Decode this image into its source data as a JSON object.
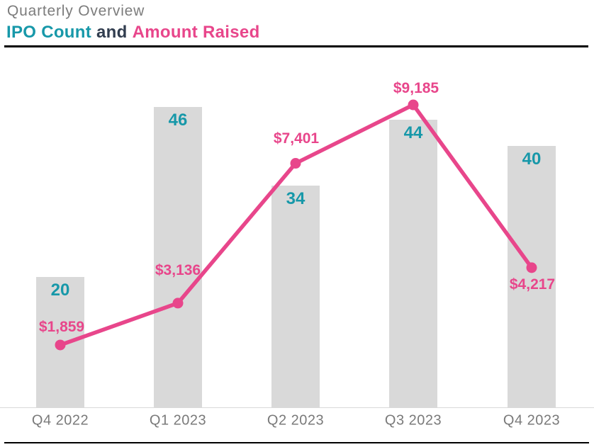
{
  "header": {
    "title": "Quarterly Overview",
    "subtitle": {
      "count_label": "IPO Count",
      "connector": "and",
      "amount_label": "Amount Raised"
    }
  },
  "colors": {
    "teal": "#1798a9",
    "pink": "#e8468b",
    "bar_gray": "#d9d9d9",
    "title_gray": "#7c7c7c",
    "axis_text_gray": "#7a7a7a",
    "connector_dark": "#313d4f",
    "rule_black": "#000000"
  },
  "chart_data": {
    "type": "bar",
    "combo": "bar series with overlaid line series (dual implicit axes, no visible ticks)",
    "title": "Quarterly Overview",
    "subtitle": "IPO Count and Amount Raised",
    "categories": [
      "Q4 2022",
      "Q1 2023",
      "Q2 2023",
      "Q3 2023",
      "Q4 2023"
    ],
    "series": [
      {
        "name": "IPO Count",
        "type": "bar",
        "color": "#d9d9d9",
        "label_color": "#1798a9",
        "values": [
          20,
          46,
          34,
          44,
          40
        ],
        "value_labels": [
          "20",
          "46",
          "34",
          "44",
          "40"
        ],
        "label_position": "inside-top of each bar"
      },
      {
        "name": "Amount Raised",
        "type": "line",
        "color": "#e8468b",
        "values": [
          1859,
          3136,
          7401,
          9185,
          4217
        ],
        "value_labels": [
          "$1,859",
          "$3,136",
          "$7,401",
          "$9,185",
          "$4,217"
        ],
        "marker": "filled circle",
        "label_position": "above points (below for last point)"
      }
    ],
    "xlabel": "",
    "ylabel": "",
    "grid": false,
    "legend": "none (series identified by colored words in subtitle)",
    "count_axis_range": [
      0,
      55
    ],
    "amount_axis_range": [
      0,
      11000
    ]
  }
}
